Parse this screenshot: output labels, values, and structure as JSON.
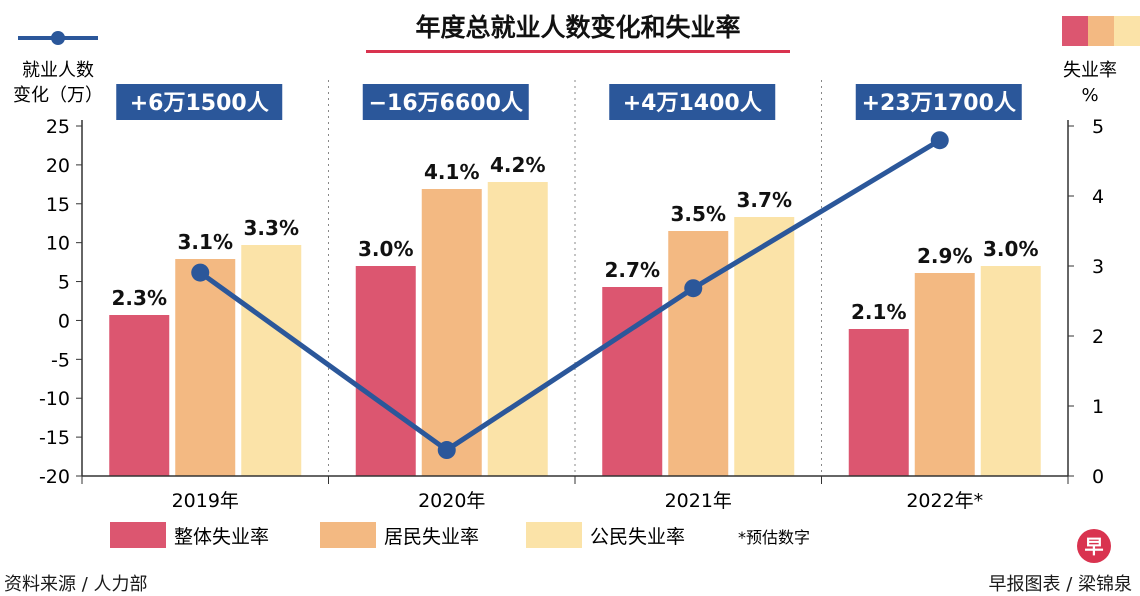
{
  "chart_data": {
    "type": "bar+line",
    "title": "年度总就业人数变化和失业率",
    "left_axis_label": [
      "就业人数",
      "变化（万）"
    ],
    "right_axis_label": [
      "失业率",
      "%"
    ],
    "left_ylim": [
      -20,
      25
    ],
    "left_ticks": [
      "25",
      "20",
      "15",
      "10",
      "5",
      "0",
      "-5",
      "-10",
      "-15",
      "-20"
    ],
    "right_ylim": [
      0,
      5
    ],
    "right_ticks": [
      "5",
      "4",
      "3",
      "2",
      "1",
      "0"
    ],
    "categories": [
      "2019年",
      "2020年",
      "2021年",
      "2022年*"
    ],
    "bar_series": [
      {
        "name": "整体失业率",
        "color": "#dc5670",
        "values": [
          2.3,
          3.0,
          2.7,
          2.1
        ],
        "labels": [
          "2.3%",
          "3.0%",
          "2.7%",
          "2.1%"
        ]
      },
      {
        "name": "居民失业率",
        "color": "#f3b982",
        "values": [
          3.1,
          4.1,
          3.5,
          2.9
        ],
        "labels": [
          "3.1%",
          "4.1%",
          "3.5%",
          "2.9%"
        ]
      },
      {
        "name": "公民失业率",
        "color": "#fbe3a8",
        "values": [
          3.3,
          4.2,
          3.7,
          3.0
        ],
        "labels": [
          "3.3%",
          "4.2%",
          "3.7%",
          "3.0%"
        ]
      }
    ],
    "line_series": {
      "name": "就业人数变化（万）",
      "color": "#2b579a",
      "values": [
        6.15,
        -16.66,
        4.14,
        23.17
      ],
      "labels": [
        "+6万1500人",
        "−16万6600人",
        "+4万1400人",
        "+23万1700人"
      ]
    },
    "footnote": "*预估数字"
  },
  "source": "资料来源 / 人力部",
  "credit": "早报图表 / 梁锦泉",
  "logo_text": "早",
  "colors": {
    "title_underline": "#d9334f",
    "axis": "#333333",
    "label_box": "#2b579a"
  }
}
